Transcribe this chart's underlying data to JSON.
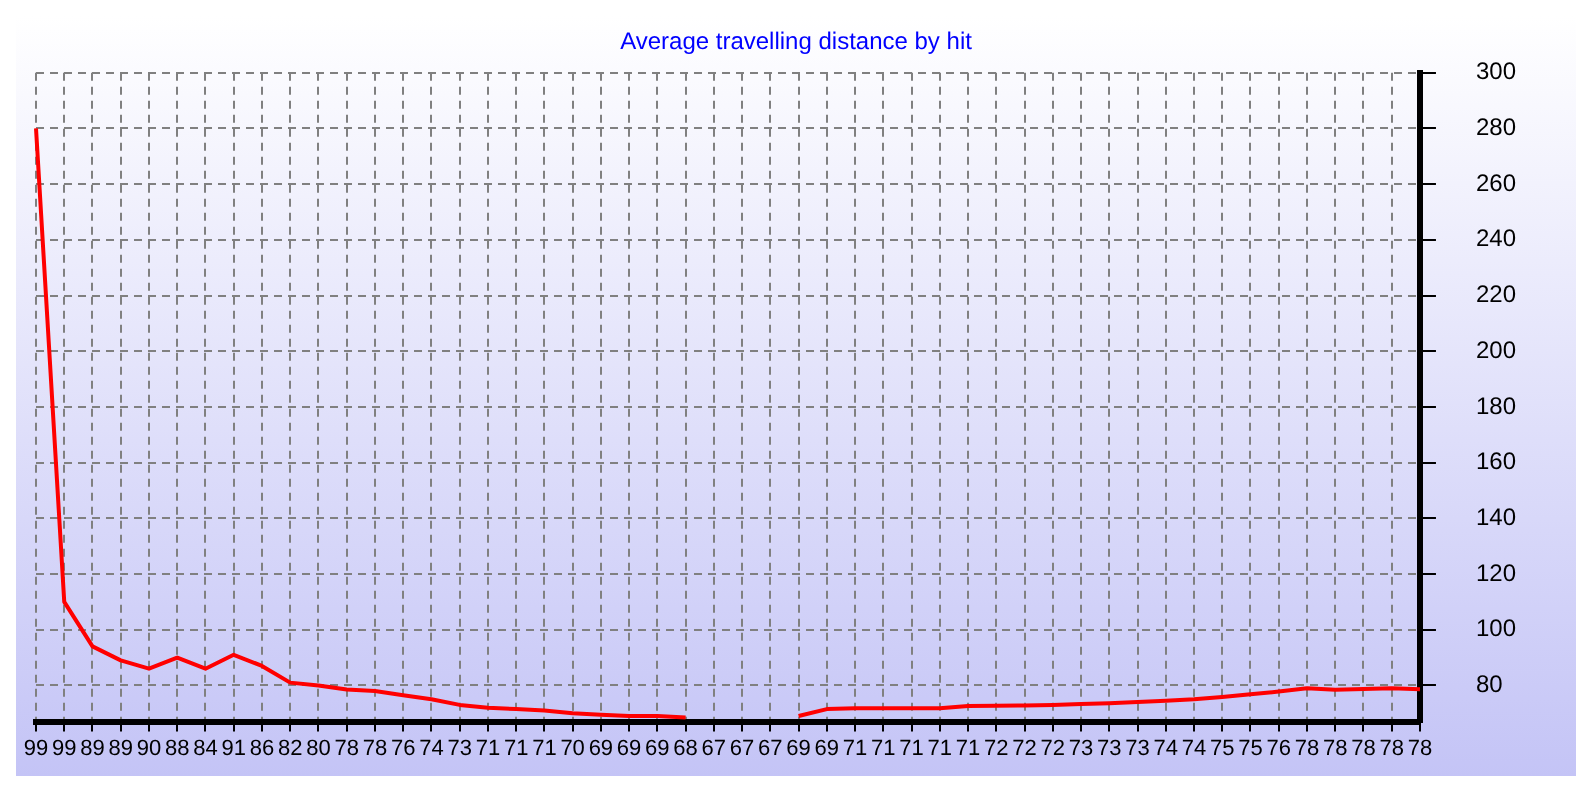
{
  "chart_data": {
    "type": "line",
    "title": "Average travelling distance by hit",
    "categories": [
      "99",
      "99",
      "89",
      "89",
      "90",
      "88",
      "84",
      "91",
      "86",
      "82",
      "80",
      "78",
      "78",
      "76",
      "74",
      "73",
      "71",
      "71",
      "71",
      "70",
      "69",
      "69",
      "69",
      "68",
      "67",
      "67",
      "67",
      "69",
      "69",
      "71",
      "71",
      "71",
      "71",
      "71",
      "72",
      "72",
      "72",
      "73",
      "73",
      "73",
      "74",
      "74",
      "75",
      "75",
      "76",
      "78",
      "78",
      "78",
      "78",
      "78"
    ],
    "ylim": [
      67,
      300
    ],
    "yticks": [
      80,
      100,
      120,
      140,
      160,
      180,
      200,
      220,
      240,
      260,
      280,
      300
    ],
    "grid": true,
    "legend": false,
    "marker": "none",
    "line_style": "solid",
    "series": [
      {
        "color": "#ff0000",
        "values": [
          280,
          110,
          94,
          89,
          86,
          90,
          86,
          91,
          87,
          81,
          80,
          78.5,
          78,
          76.5,
          75,
          73,
          72,
          71.5,
          71,
          70,
          69.5,
          69,
          69,
          68.5,
          null,
          null,
          null,
          69,
          71.5,
          71.8,
          71.8,
          71.8,
          71.8,
          72.6,
          72.7,
          72.8,
          73,
          73.3,
          73.6,
          74,
          74.5,
          75,
          75.8,
          76.8,
          77.8,
          79,
          78.4,
          78.7,
          79,
          78.6
        ]
      }
    ]
  }
}
